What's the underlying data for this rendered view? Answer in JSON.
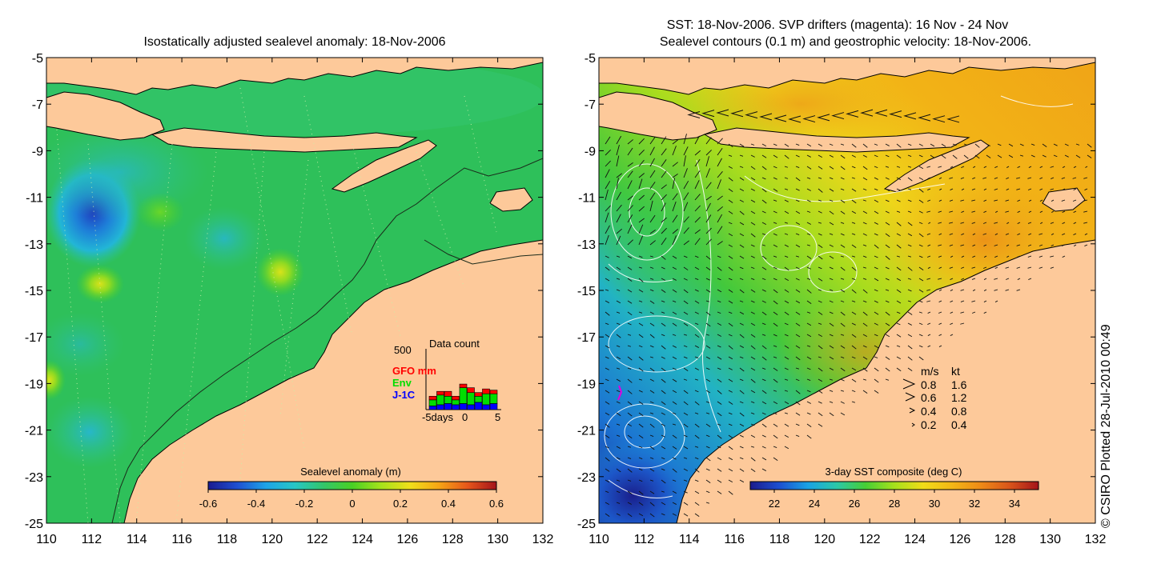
{
  "left_panel": {
    "title": "Isostatically adjusted sealevel anomaly: 18-Nov-2006",
    "colorbar": {
      "label": "Sealevel anomaly (m)",
      "ticks": [
        "-0.6",
        "-0.4",
        "-0.2",
        "0",
        "0.2",
        "0.4",
        "0.6"
      ],
      "colors": [
        "#1a1b8f",
        "#1f4fd1",
        "#1ea3e6",
        "#27c6c6",
        "#33c66a",
        "#49d024",
        "#a6e31b",
        "#f0df1a",
        "#f6a515",
        "#e6561b",
        "#a4141a"
      ]
    },
    "data_count": {
      "title": "Data count",
      "y_max": "500",
      "legend": [
        {
          "label": "GFO mm",
          "color": "#ff0000"
        },
        {
          "label": "Env",
          "color": "#00dd00"
        },
        {
          "label": "J-1C",
          "color": "#0000ff"
        }
      ],
      "x_ticks": [
        "-5days",
        "0",
        "5"
      ],
      "bars": [
        {
          "j1c": 0.06,
          "env": 0.1,
          "gfo": 0.06
        },
        {
          "j1c": 0.08,
          "env": 0.16,
          "gfo": 0.06
        },
        {
          "j1c": 0.1,
          "env": 0.12,
          "gfo": 0.08
        },
        {
          "j1c": 0.08,
          "env": 0.08,
          "gfo": 0.06
        },
        {
          "j1c": 0.1,
          "env": 0.26,
          "gfo": 0.06
        },
        {
          "j1c": 0.08,
          "env": 0.2,
          "gfo": 0.08
        },
        {
          "j1c": 0.12,
          "env": 0.1,
          "gfo": 0.06
        },
        {
          "j1c": 0.08,
          "env": 0.18,
          "gfo": 0.08
        },
        {
          "j1c": 0.1,
          "env": 0.16,
          "gfo": 0.06
        }
      ]
    }
  },
  "right_panel": {
    "title_line1": "SST: 18-Nov-2006. SVP drifters (magenta): 16 Nov - 24 Nov",
    "title_line2": "Sealevel contours (0.1 m) and geostrophic velocity: 18-Nov-2006.",
    "colorbar": {
      "label": "3-day SST composite (deg C)",
      "ticks": [
        "22",
        "24",
        "26",
        "28",
        "30",
        "32",
        "34"
      ],
      "colors": [
        "#1b1b8c",
        "#1c4fd0",
        "#1aa2e4",
        "#2bc8a8",
        "#46cf35",
        "#a6e01c",
        "#f1dc18",
        "#f3b716",
        "#ee8a17",
        "#d9551a",
        "#a4141a"
      ]
    },
    "velocity_legend": {
      "header_ms": "m/s",
      "header_kt": "kt",
      "rows": [
        {
          "ms": "0.8",
          "kt": "1.6"
        },
        {
          "ms": "0.6",
          "kt": "1.2"
        },
        {
          "ms": "0.4",
          "kt": "0.8"
        },
        {
          "ms": "0.2",
          "kt": "0.4"
        }
      ]
    }
  },
  "axes": {
    "x_ticks": [
      "110",
      "112",
      "114",
      "116",
      "118",
      "120",
      "122",
      "124",
      "126",
      "128",
      "130",
      "132"
    ],
    "y_ticks": [
      "-5",
      "-7",
      "-9",
      "-11",
      "-13",
      "-15",
      "-17",
      "-19",
      "-21",
      "-23",
      "-25"
    ]
  },
  "credit": "© CSIRO Plotted 28-Jul-2010 00:49"
}
